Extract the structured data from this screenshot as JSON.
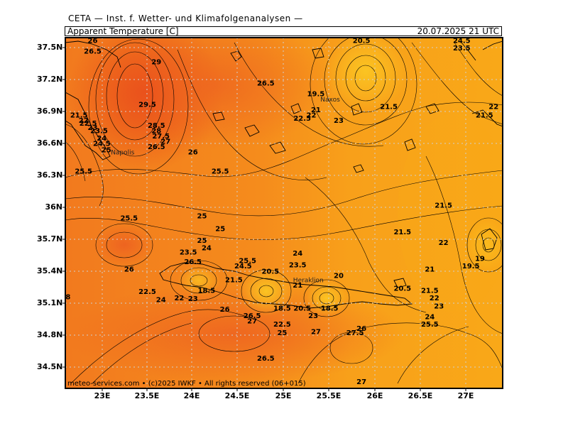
{
  "header": {
    "institute": "CETA — Inst. f. Wetter- und Klimafolgenanalysen —",
    "parameter": "Apparent Temperature [C]",
    "datetime": "20.07.2025 21 UTC"
  },
  "footer": {
    "credit": "meteo-services.com • (c)2025 IWKF • All rights reserved (06+015)"
  },
  "axes": {
    "lat_labels": [
      "37.5N",
      "37.2N",
      "36.9N",
      "36.6N",
      "36.3N",
      "36N",
      "35.7N",
      "35.4N",
      "35.1N",
      "34.8N",
      "34.5N"
    ],
    "lon_labels": [
      "23E",
      "23.5E",
      "24E",
      "24.5E",
      "25E",
      "25.5E",
      "26E",
      "26.5E",
      "27E"
    ],
    "grid": "dotted",
    "lon_range": [
      22.6,
      27.4
    ],
    "lat_range": [
      34.3,
      37.6
    ]
  },
  "colors": {
    "warm_30": "#e8501a",
    "warm_27": "#f07020",
    "warm_24": "#f58c1c",
    "mid_21": "#f8a818",
    "cool_18": "#fbc020",
    "contour": "#000000",
    "grid": "#c8c8c8"
  },
  "places": [
    {
      "name": "Napolis",
      "lon": 23.1,
      "lat": 36.5
    },
    {
      "name": "Naxos",
      "lon": 25.4,
      "lat": 37.0
    },
    {
      "name": "Heraklion",
      "lon": 25.1,
      "lat": 35.3
    }
  ],
  "contour_labels": [
    {
      "text": "26",
      "lon": 22.9,
      "lat": 37.55
    },
    {
      "text": "26.5",
      "lon": 22.9,
      "lat": 37.45
    },
    {
      "text": "29",
      "lon": 23.6,
      "lat": 37.35
    },
    {
      "text": "29.5",
      "lon": 23.5,
      "lat": 36.95
    },
    {
      "text": "28.5",
      "lon": 23.6,
      "lat": 36.75
    },
    {
      "text": "28",
      "lon": 23.6,
      "lat": 36.7
    },
    {
      "text": "27.5",
      "lon": 23.65,
      "lat": 36.65
    },
    {
      "text": "27",
      "lon": 23.7,
      "lat": 36.6
    },
    {
      "text": "26.5",
      "lon": 23.6,
      "lat": 36.55
    },
    {
      "text": "26",
      "lon": 24.0,
      "lat": 36.5
    },
    {
      "text": "21.5",
      "lon": 22.75,
      "lat": 36.85
    },
    {
      "text": "22",
      "lon": 22.8,
      "lat": 36.8
    },
    {
      "text": "22.5",
      "lon": 22.85,
      "lat": 36.77
    },
    {
      "text": "23",
      "lon": 22.9,
      "lat": 36.73
    },
    {
      "text": "23.5",
      "lon": 22.97,
      "lat": 36.7
    },
    {
      "text": "24",
      "lon": 23.0,
      "lat": 36.63
    },
    {
      "text": "24.5",
      "lon": 23.0,
      "lat": 36.58
    },
    {
      "text": "25",
      "lon": 23.05,
      "lat": 36.52
    },
    {
      "text": "25.5",
      "lon": 22.8,
      "lat": 36.32
    },
    {
      "text": "26.5",
      "lon": 24.8,
      "lat": 37.15
    },
    {
      "text": "25.5",
      "lon": 24.3,
      "lat": 36.32
    },
    {
      "text": "20.5",
      "lon": 25.85,
      "lat": 37.55
    },
    {
      "text": "19.5",
      "lon": 25.35,
      "lat": 37.05
    },
    {
      "text": "21",
      "lon": 25.35,
      "lat": 36.9
    },
    {
      "text": "22",
      "lon": 25.3,
      "lat": 36.85
    },
    {
      "text": "22.5",
      "lon": 25.2,
      "lat": 36.82
    },
    {
      "text": "23",
      "lon": 25.6,
      "lat": 36.8
    },
    {
      "text": "21.5",
      "lon": 26.15,
      "lat": 36.93
    },
    {
      "text": "24.5",
      "lon": 26.95,
      "lat": 37.55
    },
    {
      "text": "23.5",
      "lon": 26.95,
      "lat": 37.48
    },
    {
      "text": "22",
      "lon": 27.3,
      "lat": 36.93
    },
    {
      "text": "21.5",
      "lon": 27.2,
      "lat": 36.85
    },
    {
      "text": "25.5",
      "lon": 23.3,
      "lat": 35.88
    },
    {
      "text": "25",
      "lon": 24.1,
      "lat": 35.9
    },
    {
      "text": "25",
      "lon": 24.3,
      "lat": 35.78
    },
    {
      "text": "25",
      "lon": 24.1,
      "lat": 35.67
    },
    {
      "text": "21.5",
      "lon": 26.75,
      "lat": 36.0
    },
    {
      "text": "21.5",
      "lon": 26.3,
      "lat": 35.75
    },
    {
      "text": "22",
      "lon": 26.75,
      "lat": 35.65
    },
    {
      "text": "26",
      "lon": 23.3,
      "lat": 35.4
    },
    {
      "text": "24",
      "lon": 24.15,
      "lat": 35.6
    },
    {
      "text": "23.5",
      "lon": 23.95,
      "lat": 35.56
    },
    {
      "text": "26.5",
      "lon": 24.0,
      "lat": 35.47
    },
    {
      "text": "24",
      "lon": 25.15,
      "lat": 35.55
    },
    {
      "text": "25.5",
      "lon": 24.6,
      "lat": 35.48
    },
    {
      "text": "24.5",
      "lon": 24.55,
      "lat": 35.43
    },
    {
      "text": "23.5",
      "lon": 25.15,
      "lat": 35.44
    },
    {
      "text": "20.5",
      "lon": 24.85,
      "lat": 35.38
    },
    {
      "text": "21.5",
      "lon": 24.45,
      "lat": 35.3
    },
    {
      "text": "21",
      "lon": 25.15,
      "lat": 35.25
    },
    {
      "text": "20",
      "lon": 25.6,
      "lat": 35.34
    },
    {
      "text": "22.5",
      "lon": 23.5,
      "lat": 35.19
    },
    {
      "text": "24",
      "lon": 23.65,
      "lat": 35.11
    },
    {
      "text": "22",
      "lon": 23.85,
      "lat": 35.13
    },
    {
      "text": "23",
      "lon": 24.0,
      "lat": 35.12
    },
    {
      "text": "18.5",
      "lon": 24.15,
      "lat": 35.2
    },
    {
      "text": "20.5",
      "lon": 26.3,
      "lat": 35.22
    },
    {
      "text": "21",
      "lon": 26.6,
      "lat": 35.4
    },
    {
      "text": "21.5",
      "lon": 26.6,
      "lat": 35.2
    },
    {
      "text": "22",
      "lon": 26.65,
      "lat": 35.13
    },
    {
      "text": "23",
      "lon": 26.7,
      "lat": 35.05
    },
    {
      "text": "24",
      "lon": 26.6,
      "lat": 34.95
    },
    {
      "text": "25.5",
      "lon": 26.6,
      "lat": 34.88
    },
    {
      "text": "19",
      "lon": 27.15,
      "lat": 35.5
    },
    {
      "text": "19.5",
      "lon": 27.05,
      "lat": 35.43
    },
    {
      "text": "26",
      "lon": 24.35,
      "lat": 35.02
    },
    {
      "text": "26.5",
      "lon": 24.65,
      "lat": 34.96
    },
    {
      "text": "27",
      "lon": 24.65,
      "lat": 34.91
    },
    {
      "text": "18.5",
      "lon": 24.98,
      "lat": 35.03
    },
    {
      "text": "20.5",
      "lon": 25.2,
      "lat": 35.03
    },
    {
      "text": "18.5",
      "lon": 25.5,
      "lat": 35.03
    },
    {
      "text": "23",
      "lon": 25.32,
      "lat": 34.96
    },
    {
      "text": "22.5",
      "lon": 24.98,
      "lat": 34.88
    },
    {
      "text": "25",
      "lon": 24.98,
      "lat": 34.8
    },
    {
      "text": "27",
      "lon": 25.35,
      "lat": 34.81
    },
    {
      "text": "27.5",
      "lon": 25.78,
      "lat": 34.8
    },
    {
      "text": "26",
      "lon": 25.85,
      "lat": 34.84
    },
    {
      "text": "26.5",
      "lon": 24.8,
      "lat": 34.56
    },
    {
      "text": "27",
      "lon": 25.85,
      "lat": 34.34
    },
    {
      "text": "8",
      "lon": 22.63,
      "lat": 35.14
    }
  ]
}
